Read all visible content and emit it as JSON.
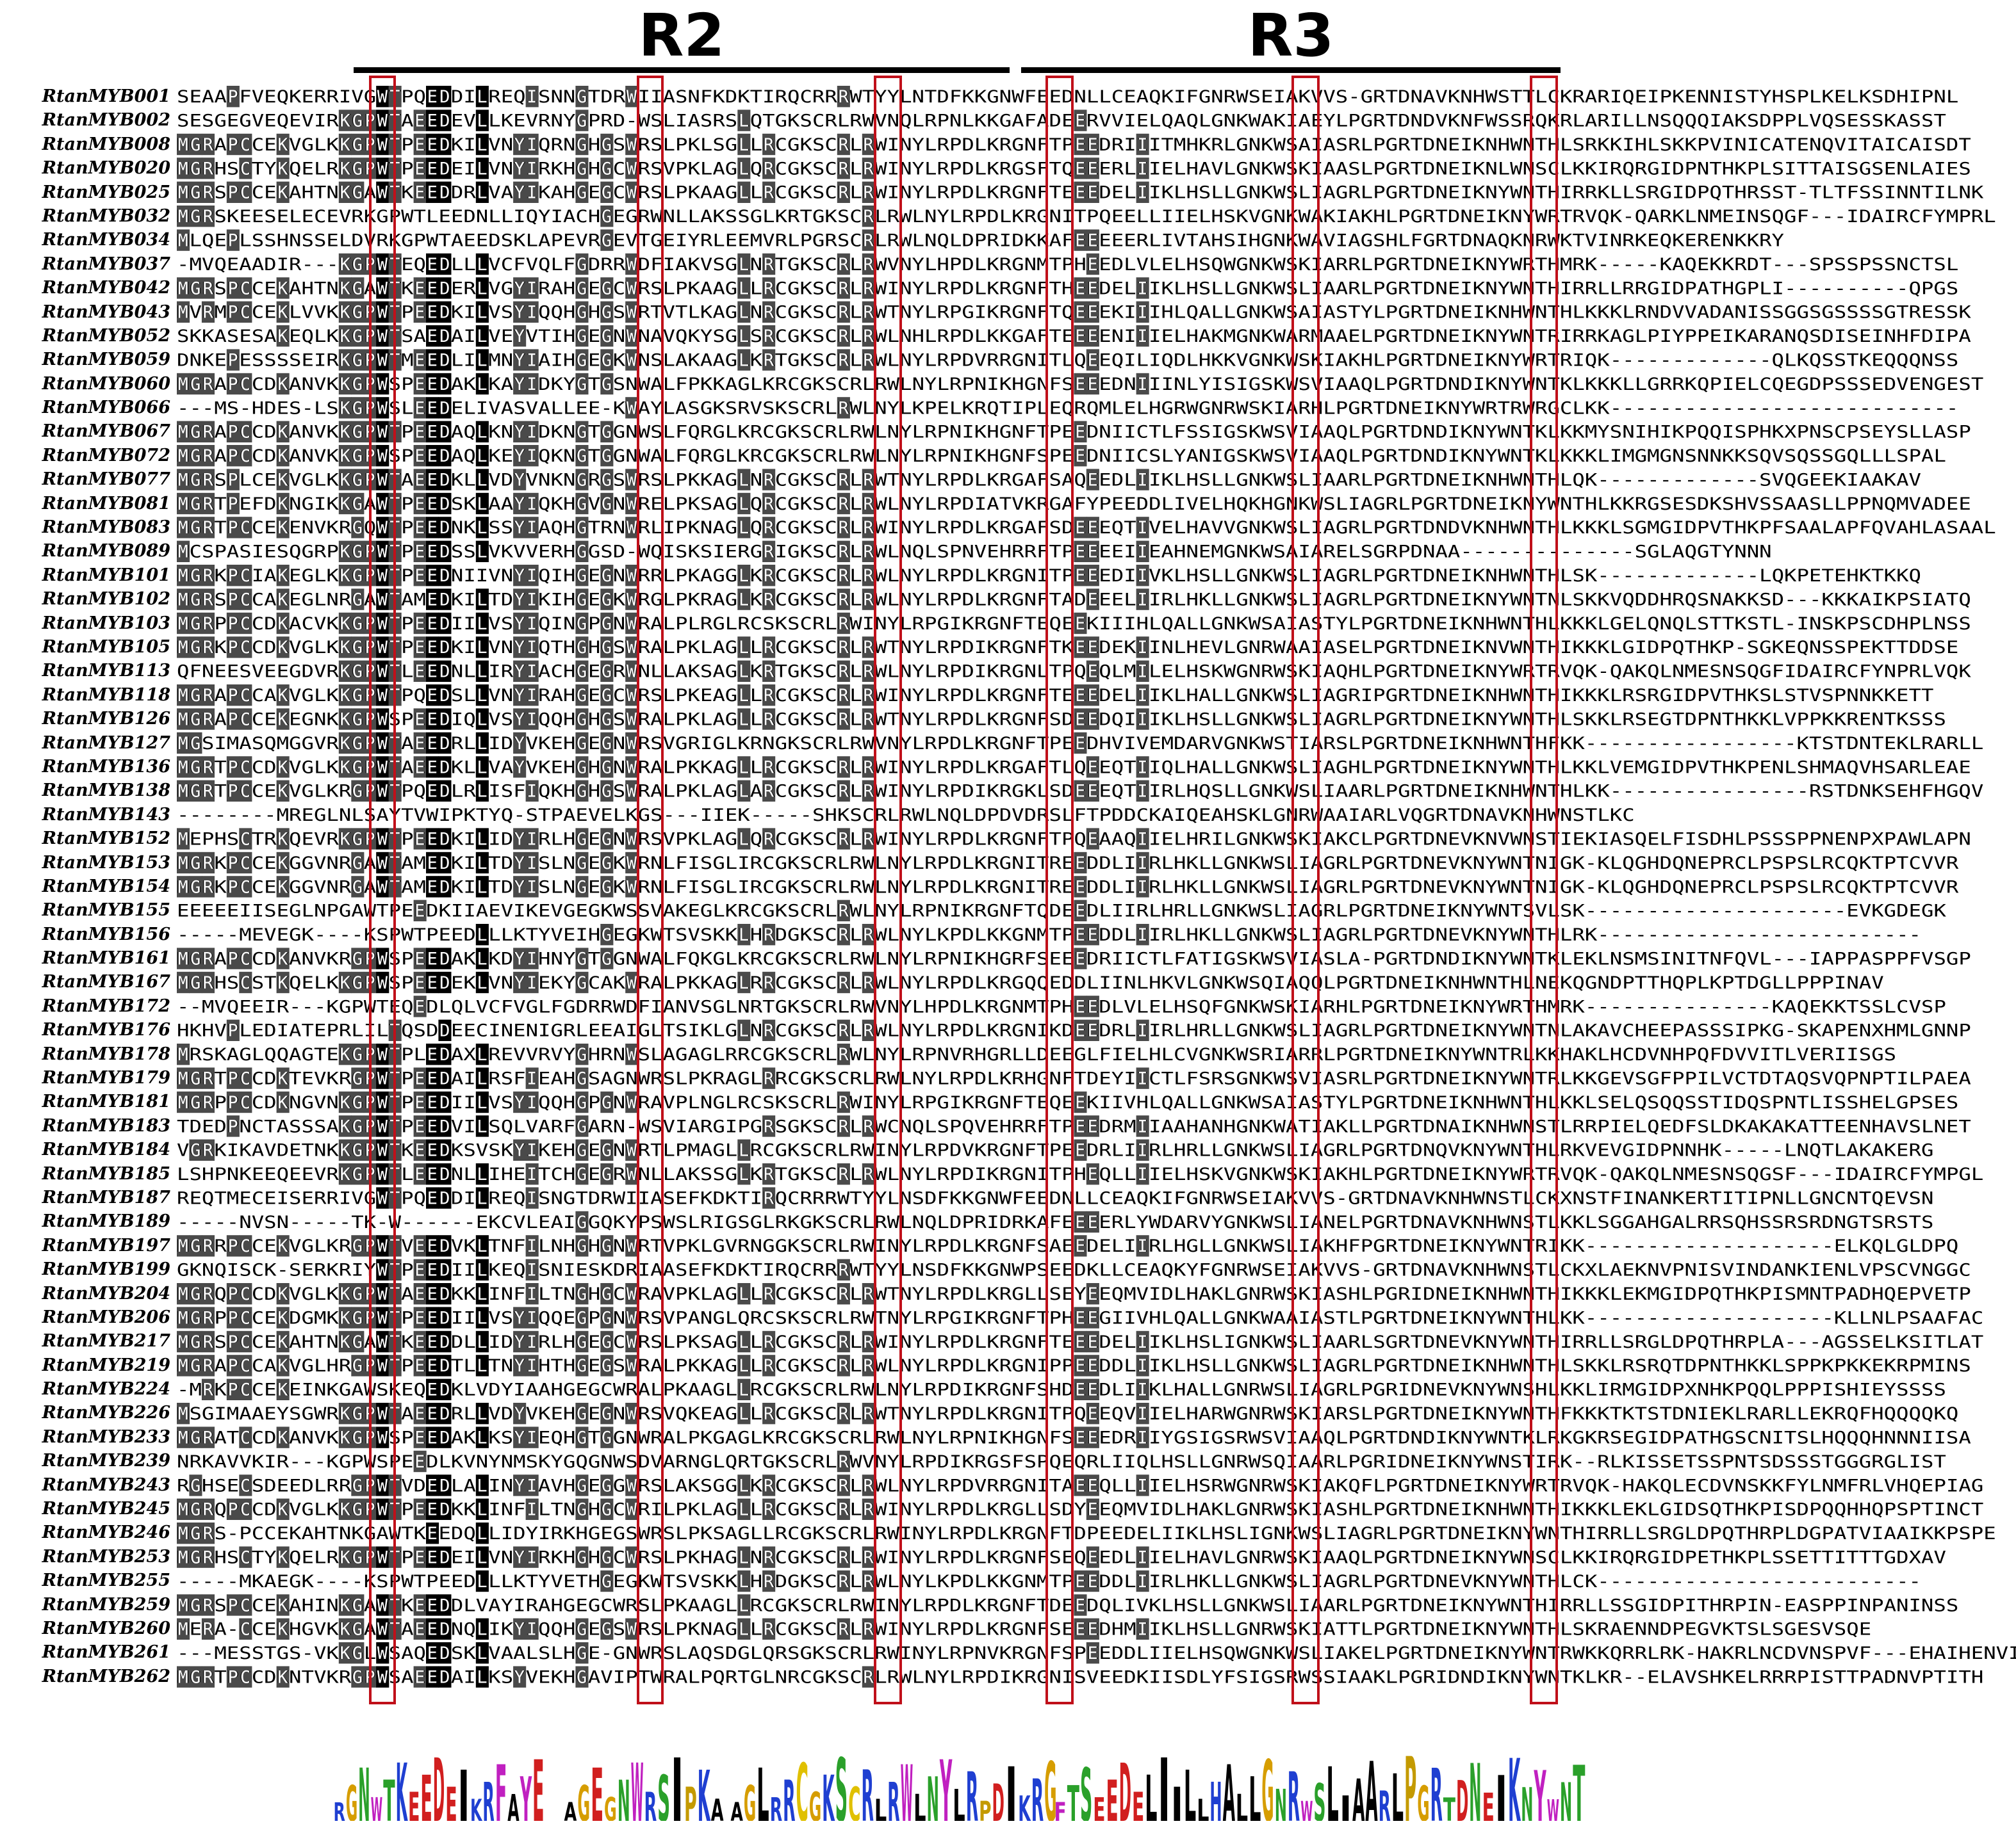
{
  "regions": [
    {
      "label": "R2"
    },
    {
      "label": "R3"
    }
  ],
  "sequences": [
    {
      "name": "RtanMYB001",
      "seq": "SEAAPFVEQKERRIVGWTPQEDDILREQISNNGTDRWIIASNFKDKTIRQCRRRWTYYLNTDFKKGNWFEEDNLLCEAQKIFGNRWSEIAKVVS-GRTDNAVKNHWSTTLCKRARIQEIPKENNISTYHSPLKELKSDHIPNL"
    },
    {
      "name": "RtanMYB002",
      "seq": "SESGEGVEQEVIRKGPWTAEEDEVLLKEVRNYGPRD-WSLIASRSLQTGKSCRLRWVNQLRPNLKKGAFADEERVVIELQAQLGNKWAKIAEYLPGRTDNDVKNFWSSRQKRLARILLNSQQQIAKSDPPLVQSESSKASST"
    },
    {
      "name": "RtanMYB008",
      "seq": "MGRAPCCEKVGLKKGPWTPEEDKILVNYIQRNGHGSWRSLPKLSGLLRCGKSCRLRWINYLRPDLKRGNFTPEEDRIIITMHKRLGNKWSAIASRLPGRTDNEIKNHWNTHLSRKKIHLSKKPVINICATENQVITAICAISDT"
    },
    {
      "name": "RtanMYB020",
      "seq": "MGRHSCTYKQELRKGPWTPEEDEILVNYIRKHGHGCWRSVPKLAGLQRCGKSCRLRWINYLRPDLKRGSFTQEEERLIIELHAVLGNKWSKIAASLPGRTDNEIKNLWNSCLKKIRQRGIDPNTHKPLSITTAISGSENLAIES"
    },
    {
      "name": "RtanMYB025",
      "seq": "MGRSPCCEKAHTNKGAWTKEEDDRLVAYIKAHGEGCWRSLPKAAGLLRCGKSCRLRWINYLRPDLKRGNFTEEEDELIIKLHSLLGNKWSLIAGRLPGRTDNEIKNYWNTHIRRKLLSRGIDPQTHRSST-TLTFSSINNTILNK"
    },
    {
      "name": "RtanMYB032",
      "seq": "MGRSKEESELECEVRKGPWTLEEDNLLIQYIACHGEGRWNLLAKSSGLKRTGKSCRLRWLNYLRPDLKRGNITPQEELLIIELHSKVGNKWAKIAKHLPGRTDNEIKNYWRTRVQK-QARKLNMEINSQGF---IDAIRCFYMPRL"
    },
    {
      "name": "RtanMYB034",
      "seq": "MLQEPLSSHNSSELDVRKGPWTAEEDSKLAPEVRGEVTGEIYRLEEMVRLPGRSCRLRWLNQLDPRIDKKAFEEEEERLIVTAHSIHGNKWAVIAGSHLFGRTDNAQKNRWKTVINRKEQKERENKKRY"
    },
    {
      "name": "RtanMYB037",
      "seq": "-MVQEAADIR---KGPWTEQEDLLLVCFVQLFGDRRWDFIAKVSGLNRTGKSCRLRWVNYLHPDLKRGNMTPHEEDLVLELHSQWGNKWSKIARRLPGRTDNEIKNYWRTHMRK-----KAQEKKRDT---SPSSPSSNCTSL"
    },
    {
      "name": "RtanMYB042",
      "seq": "MGRSPCCEKAHTNKGAWTKEEDERLVGYIRAHGEGCWRSLPKAAGLLRCGKSCRLRWINYLRPDLKRGNFTHEEDELIIKLHSLLGNKWSLIAARLPGRTDNEIKNYWNTHIRRLLRRGIDPATHGPLI----------QPGS"
    },
    {
      "name": "RtanMYB043",
      "seq": "MVRMPCCEKLVVKKGPWTPEEDKILVSYIQQHGHGSWRTVTLKAGLNRCGKSCRLRWTNYLRPGIKRGNFTQEEEKIIIHLQALLGNKWSAIASTYLPGRTDNEIKNHWNTHLKKKLRNDVVADANISSGGSGSSSSGTRESSK"
    },
    {
      "name": "RtanMYB052",
      "seq": "SKKASESAKEQLKKGPWTSAEDAILVEYVTIHGEGNWNAVQKYSGLSRCGKSCRLRWLNHLRPDLKKGAFTEEEENIIIELHAKMGNKWARMAAELPGRTDNEIKNYWNTRIRRKAGLPIYPPEIKARANQSDISEINHFDIPA"
    },
    {
      "name": "RtanMYB059",
      "seq": "DNKEPESSSSEIRKGPWTMEEDLILMNYIAIHGEGKWNSLAKAAGLKRTGKSCRLRWLNYLRPDVRRGNITLQEEQILIQDLHKKVGNKWSKIAKHLPGRTDNEIKNYWRTRIQK-------------QLKQSSTKEQQQNSS"
    },
    {
      "name": "RtanMYB060",
      "seq": "MGRAPCCDKANVKKGPWSPEEDAKLKAYIDKYGTGSNWALFPKKAGLKRCGKSCRLRWLNYLRPNIKHGNFSEEEDNIIINLYISIGSKWSVIAAQLPGRTDNDIKNYWNTKLKKKLLGRRKQPIELCQEGDPSSSEDVENGEST"
    },
    {
      "name": "RtanMYB066",
      "seq": "---MS-HDES-LSKGPWSLEEDELIVASVALLEE-KWAYLASGKSRVSKSCRLRWLNYLKPELKRQTIPLEQRQMLELHGRWGNRWSKIARHLPGRTDNEIKNYWRTRWRGCLKK----------------------------"
    },
    {
      "name": "RtanMYB067",
      "seq": "MGRAPCCDKANVKKGPWTPEEDAQLKNYIDKNGTGGNWSLFQRGLKRCGKSCRLRWLNYLRPNIKHGNFTPEEDNIICTLFSSIGSKWSVIAAQLPGRTDNDIKNYWNTKLKKMYSNIHIKPQQISPHKXPNSCPSEYSLLASP"
    },
    {
      "name": "RtanMYB072",
      "seq": "MGRAPCCDKANVKKGPWSPEEDAQLKEYIQKNGTGGNWALFQRGLKRCGKSCRLRWLNYLRPNIKHGNFSPEEDNIICSLYANIGSKWSVIAAQLPGRTDNDIKNYWNTKLKKKLIMGMGNSNNKKSQVSQSSGQLLLSPAL"
    },
    {
      "name": "RtanMYB077",
      "seq": "MGRSPLCEKVGLKKGPWTAEEDKLLVDYVNKNGRGSWRSLPKKAGLNRCGKSCRLRWTNYLRPDLKRGAFSAQEEDLIIKLHSLLGNKWSLIAARLPGRTDNEIKNHWNTHLQK-------------SVQGEEKIAAKAV"
    },
    {
      "name": "RtanMYB081",
      "seq": "MGRTPEFDKNGIKKGAWTPEEDSKLAAYIQKHGVGNWRELPKSAGLQRCGKSCRLRWLNYLRPDIATVKRGAFYPEEDDLIVELHQKHGNKWSLIAGRLPGRTDNEIKNYWNTHLKKRGSESDKSHVSSAASLLPPNQMVADEE"
    },
    {
      "name": "RtanMYB083",
      "seq": "MGRTPCCEKENVKRGQWTPEEDNKLSSYIAQHGTRNWRLIPKNAGLQRCGKSCRLRWINYLRPDLKRGAFSDEEEQTIVELHAVVGNKWSLIAGRLPGRTDNDVKNHWNTHLKKKLSGMGIDPVTHKPFSAALAPFQVAHLASAAL"
    },
    {
      "name": "RtanMYB089",
      "seq": "MCSPASIESQGRPKGPWTPEEDSSLVKVVERHGGSD-WQISKSIERGRIGKSCRLRWLNQLSPNVEHRRFTPEEEEIIEAHNEMGNKWSAIARELSGRPDNAA--------------SGLAQGTYNNN"
    },
    {
      "name": "RtanMYB101",
      "seq": "MGRKPCIAKEGLKKGPWTPEEDNIIVNYIQIHGEGNWRRLPKAGGLKRCGKSCRLRWLNYLRPDLKRGNITPEEEDIIVKLHSLLGNKWSLIAGRLPGRTDNEIKNHWNTHLSK-------------LQKPETEHKTKKQ"
    },
    {
      "name": "RtanMYB102",
      "seq": "MGRSPCCAKEGLNRGAWTAMEDKILTDYIKIHGEGKWRGLPKRAGLKRCGKSCRLRWLNYLRPDLKRGNFTADEEELIIRLHKLLGNKWSLIAGRLPGRTDNEIKNYWNTNLSKKVQDDHRQSNAKKSD---KKKAIKPSIATQ"
    },
    {
      "name": "RtanMYB103",
      "seq": "MGRPPCCDKACVKKGPWTPEEDIILVSYIQINGPGNWRALPLRGLRCSKSCRLRWINYLRPGIKRGNFTEQEEKIIIHLQALLGNKWSAIASTYLPGRTDNEIKNHWNTHLKKKLGELQNQLSTTKSTL-INSKPSCDHPLNSS"
    },
    {
      "name": "RtanMYB105",
      "seq": "MGRKPCCDKVGLKKGPWTPEEDKILVNYIQTHGHGSWRALPKLAGLLRCGKSCRLRWTNYLRPDIKRGNFTKEEDEKIINLHEVLGNRWAAIASELPGRTDNEIKNVWNTHIKKKLGIDPQTHKP-SGKEQNSSPEKTTDDSE"
    },
    {
      "name": "RtanMYB113",
      "seq": "QFNEESVEEGDVRKGPWTLEEDNLLIRYIACHGEGRWNLLAKSAGLKRTGKSCRLRWLNYLRPDIKRGNLTPQEQLMILELHSKWGNRWSKIAQHLPGRTDNEIKNYWRTRVQK-QAKQLNMESNSQGFIDAIRCFYNPRLVQK"
    },
    {
      "name": "RtanMYB118",
      "seq": "MGRAPCCAKVGLKKGPWTPQEDSLLVNYIRAHGEGCWRSLPKEAGLLRCGKSCRLRWINYLRPDLKRGNFTEEEDELIIKLHALLGNKWSLIAGRIPGRTDNEIKNHWNTHIKKKLRSRGIDPVTHKSLSTVSPNNKKETT"
    },
    {
      "name": "RtanMYB126",
      "seq": "MGRAPCCEKEGNKKGPWSPEEDIQLVSYIQQHGHGSWRALPKLAGLLRCGKSCRLRWTNYLRPDLKRGNFSDEEDQIIIKLHSLLGNKWSLIAGRLPGRTDNEIKNYWNTHLSKKLRSEGTDPNTHKKLVPPKKRENTKSSS"
    },
    {
      "name": "RtanMYB127",
      "seq": "MGSIMASQMGGVRKGPWTAEEDRLLIDYVKEHGEGNWRSVGRIGLKRNGKSCRLRWVNYLRPDLKRGNFTPEEDHVIVEMDARVGNKWSTIARSLPGRTDNEIKNHWNTHFKK-----------------KTSTDNTEKLRARLL"
    },
    {
      "name": "RtanMYB136",
      "seq": "MGRTPCCDKVGLKKGPWTAEEDKLLVAYVKEHGHGNWRALPKKAGLLRCGKSCRLRWINYLRPDLKRGAFTLQEEQTIIQLHALLGNKWSLIAGHLPGRTDNEIKNYWNTHLKKLVEMGIDPVTHKPENLSHMAQVHSARLEAE"
    },
    {
      "name": "RtanMYB138",
      "seq": "MGRTPCCEKVGLKRGPWTPQEDLRLISFIQKHGHGSWRALPKLAGLARCGKSCRLRWINYLRPDIKRGKLSDEEEQTIIRLHQSLLGNKWSLIAARLPGRTDNEIKNHWNTHLKK----------------RSTDNKSEHFHGQV"
    },
    {
      "name": "RtanMYB143",
      "seq": "--------MREGLNLSAYTVWIPKTYQ-STPAEVELKGS---IIEK-----SHKSCRLRWLNQLDPDVDRSLFTPDDCKAIQEAHSKLGNRWAAIARLVQGRTDNAVKNHWNSTLKC"
    },
    {
      "name": "RtanMYB152",
      "seq": "MEPHSCTRKQEVRKGPWTPEEDKILIDYIRLHGEGNWRSVPKLAGLQRCGKSCRLRWINYLRPDLKRGNFTPQEAAQIIELHRILGNKWSKIAKCLPGRTDNEVKNVWNSTIEKIASQELFISDHLPSSSPPNENPXPAWLAPN"
    },
    {
      "name": "RtanMYB153",
      "seq": "MGRKPCCEKGGVNRGAWTAMEDKILTDYISLNGEGKWRNLFISGLIRCGKSCRLRWLNYLRPDLKRGNITREEDDLIIRLHKLLGNKWSLIAGRLPGRTDNEVKNYWNTNIGK-KLQGHDQNEPRCLPSPSLRCQKTPTCVVR"
    },
    {
      "name": "RtanMYB154",
      "seq": "MGRKPCCEKGGVNRGAWTAMEDKILTDYISLNGEGKWRNLFISGLIRCGKSCRLRWLNYLRPDLKRGNITREEDDLIIRLHKLLGNKWSLIAGRLPGRTDNEVKNYWNTNIGK-KLQGHDQNEPRCLPSPSLRCQKTPTCVVR"
    },
    {
      "name": "RtanMYB155",
      "seq": "EEEEEIISEGLNPGAWTPEEDKIIAEVIKEVGEGKWSSVAKEGLKRCGKSCRLRWLNYLRPNIKRGNFTQDEEDLIIRLHRLLGNKWSLIAGRLPGRTDNEIKNYWNTSVLSK---------------------EVKGDEGK"
    },
    {
      "name": "RtanMYB156",
      "seq": "-----MEVEGK----KSPWTPEEDLLLKTYVEIHGEGKWTSVSKKLHRDGKSCRLRWLNYLKPDLKKGNMTPEEDDLIIRLHKLLGNKWSLIAGRLPGRTDNEVKNYWNTHLRK--------------------------"
    },
    {
      "name": "RtanMYB161",
      "seq": "MGRAPCCDKANVKRGPWSPEEDAKLKDYIHNYGTGGNWALFQKGLKRCGKSCRLRWLNYLRPNIKHGRFSEEEDRIICTLFATIGSKWSVIASLA-PGRTDNDIKNYWNTKLEKLNSMSINITNFQVL---IAPPASPPFVSGP"
    },
    {
      "name": "RtanMYB167",
      "seq": "MGRHSCSTKQELKKGPWSPEEDEKLVNYIEKYGCAKWRALPKKAGLRRCGKSCRLRWLNYLRPDLKRGQQEDDLIINLHKVLGNKWSQIAQQLPGRTDNEIKNHWNTHLNEKQGNDPTTHQPLKPTDGLLPPPINAV"
    },
    {
      "name": "RtanMYB172",
      "seq": "--MVQEEIR---KGPWTEQEDLQLVCFVGLFGDRRWDFIANVSGLNRTGKSCRLRWVNYLHPDLKRGNMTPHEEDLVLELHSQFGNKWSKIARHLPGRTDNEIKNYWRTHMRK---------------KAQEKKTSSLCVSP"
    },
    {
      "name": "RtanMYB176",
      "seq": "HKHVPLEDIATEPRLILTQSDDEECINENIGRLEEAIGLTSIKLGLNRCGKSCRLRWLNYLRPDLKRGNIKDEEDRLIIRLHRLLGNKWSLIAGRLPGRTDNEIKNYWNTNLAKAVCHEEPASSSIPKG-SKAPENXHMLGNNP"
    },
    {
      "name": "RtanMYB178",
      "seq": "MRSKAGLQQAGTEKGPWTPLEDAXLREVVRVYGHRNWSLAGAGLRRCGKSCRLRWLNYLRPNVRHGRLLDEEGLFIELHLCVGNKWSRIARRLPGRTDNEIKNYWNTRLKKHAKLHCDVNHPQFDVVITLVERIISGS"
    },
    {
      "name": "RtanMYB179",
      "seq": "MGRTPCCDKTEVKRGPWTPEEDAILRSFIEAHGSAGNWRSLPKRAGLRRCGKSCRLRWLNYLRPDLKRHGNFTDEYIICTLFSRSGNKWSVIASRLPGRTDNEIKNYWNTRLKKGEVSGFPPILVCTDTAQSVQPNPTILPAEA"
    },
    {
      "name": "RtanMYB181",
      "seq": "MGRPPCCDKNGVNKGPWTPEEDIILVSYIQQHGPGNWRAVPLNGLRCSKSCRLRWINYLRPGIKRGNFTEQEEKIIVHLQALLGNKWSAIASTYLPGRTDNEIKNHWNTHLKKLSELQSQQSSTIDQSPNTLISSHELGPSES"
    },
    {
      "name": "RtanMYB183",
      "seq": "TDEDPNCTASSSAKGPWTPEEDVILSQLVARFGARN-WSVIARGIPGRSGKSCRLRWCNQLSPQVEHRRFTPEEDRMIIAAHANHGNKWATIAKLLPGRTDNAIKNHWNSTLRRPIELQEDFSLDKAKAKATTEENHAVSLNET"
    },
    {
      "name": "RtanMYB184",
      "seq": "VGRKIKAVDETNKKGPWTKEEDKSVSKYIKEHGEGNWRTLPMAGLLRCGKSCRLRWINYLRPDVKRGNFTPEEDRLIIRLHRLLGNKWSLIAGRLPGRTDNQVKNYWNTHLRKVEVGIDPNNHK-----LNQTLAKAKERG"
    },
    {
      "name": "RtanMYB185",
      "seq": "LSHPNKEEQEEVRKGPWTLEEDNLLIHEITCHGEGRWNLLAKSSGLKRTGKSCRLRWLNYLRPDIKRGNITPHEQLLIIELHSKVGNKWSKIAKHLPGRTDNEIKNYWRTRVQK-QAKQLNMESNSQGSF---IDAIRCFYMPGL"
    },
    {
      "name": "RtanMYB187",
      "seq": "REQTMECEISERRIVGWTPQEDDILREQISNGTDRWIIASEFKDKTIRQCRRRWTYYLNSDFKKGNWFEEDNLLCEAQKIFGNRWSEIAKVVS-GRTDNAVKNHWNSTLCKXNSTFINANKERTITIPNLLGNCNTQEVSN"
    },
    {
      "name": "RtanMYB189",
      "seq": "-----NVSN-----TK-W------EKCVLEAIGGQKYPSWSLRIGSGLRKGKSCRLRWLNQLDPRIDRKAFEEEERLYWDARVYGNKWSLIANELPGRTDNAVKNHWNSTLKKLSGGAHGALRRSQHSSRSRDNGTSRSTS"
    },
    {
      "name": "RtanMYB197",
      "seq": "MGRRPCCEKVGLKRGPWTVEEDVKLTNFILNHGHGNWRTVPKLGVRNGGKSCRLRWINYLRPDLKRGNFSAEEDELIIRLHGLLGNKWSLIAKHFPGRTDNEIKNYWNTRIKK--------------------ELKQLGLDPQ"
    },
    {
      "name": "RtanMYB199",
      "seq": "GKNQISCK-SERKRIYWTPEEDIILKEQISNIESKDRIAASEFKDKTIRQCRRRWTYYLNSDFKKGNWPSEEDKLLCEAQKYFGNRWSEIAKVVS-GRTDNAVKNHWNSTLCKXLAEKNVPNISVINDANKIENLVPSCVNGGC"
    },
    {
      "name": "RtanMYB204",
      "seq": "MGRQPCCDKVGLKKGPWTAEEDKKLINFILTNGHGCWRAVPKLAGLLRCGKSCRLRWTNYLRPDLKRGLLSEYEEQMVIDLHAKLGNRWSKIASHLPGRIDNEIKNHWNTHIKKKLEKMGIDPQTHKPISMNTPADHQEPVETP"
    },
    {
      "name": "RtanMYB206",
      "seq": "MGRPPCCEKDGMKKGPWTPEEDIILVSYIQQEGPGNWRSVPANGLQRCSKSCRLRWTNYLRPGIKRGNFTPHEEGIIVHLQALLGNKWAAIASTLPGRTDNEIKNYWNTHLKK--------------------KLLNLPSAAFAC"
    },
    {
      "name": "RtanMYB217",
      "seq": "MGRSPCCEKAHTNKGAWTKEEDDLLIDYIRLHGEGCWRSLPKSAGLLRCGKSCRLRWINYLRPDLKRGNFTEEEDELIIKLHSLIGNKWSLIAARLSGRTDNEVKNYWNTHIRRLLSRGLDPQTHRPLA---AGSSELKSITLAT"
    },
    {
      "name": "RtanMYB219",
      "seq": "MGRAPCCAKVGLHRGPWTPEEDTLLTNYIHTHGEGSWRALPKKAGLLRCGKSCRLRWLNYLRPDLKRGNIPPEEDDLIIKLHSLLGNKWSLIAGRLPGRTDNEIKNHWNTHLSKKLRSRQTDPNTHKKLSPPKPKKEKRPMINS"
    },
    {
      "name": "RtanMYB224",
      "seq": "-MRKPCCEKEINKGAWSKEQEDKLVDYIAAHGEGCWRALPKAAGLLRCGKSCRLRWLNYLRPDIKRGNFSHDEEDLIIKLHALLGNRWSLIAGRLPGRIDNEVKNYWNSHLKKLIRMGIDPXNHKPQQLPPPISHIEYSSSS"
    },
    {
      "name": "RtanMYB226",
      "seq": "MSGIMAAEYSGWRKGPWTAEEDRLLVDYVKEHGEGNWRSVQKEAGLLRCGKSCRLRWTNYLRPDLKRGNITPQEEQVIIELHARWGNRWSKIARSLPGRTDNEIKNYWNTHFKKKTKTSTDNIEKLRARLLEKRQFHQQQQKQ"
    },
    {
      "name": "RtanMYB233",
      "seq": "MGRATCCDKANVKKGPWSPEEDAKLKSYIEQHGTGGNWRALPKGAGLKRCGKSCRLRWLNYLRPNIKHGNFSEEEDRIIYGSIGSRWSVIAAQLPGRTDNDIKNYWNTKLRKGKRSEGIDPATHGSCNITSLHQQQHNNNIISA"
    },
    {
      "name": "RtanMYB239",
      "seq": "NRKAVVKIR---KGPWSPEEDLKVNYNMSKYGQGNWSDVARNGLQRTGKSCRLRWVNYLRPDIKRGSFSPQEQRLIIQLHSLLGNRWSQIAARLPGRIDNEIKNYWNSTIRK--RLKISSETSSPNTSDSSSTGGGRGLIST"
    },
    {
      "name": "RtanMYB243",
      "seq": "RGHSECSDEEDLRRGPWTVDEDLALINYIAVHGEGGWRSLAKSGGLKRCGKSCRLRWLNYLRPDVRRGNITAEEQLLIIELHSRWGNRWSKIAKQFLPGRTDNEIKNYWRTRVQK-HAKQLECDVNSKKFYLNMFRLVHQEPIAG"
    },
    {
      "name": "RtanMYB245",
      "seq": "MGRQPCCDKVGLKKGPWTPEEDKKLINFILTNGHGCWRILPKLAGLLRCGKSCRLRWINYLRPDLKRGLLSDYEEQMVIDLHAKLGNRWSKIASHLPGRTDNEIKNHWNTHIKKKLEKLGIDSQTHKPISDPQQHHQPSPTINCT"
    },
    {
      "name": "RtanMYB246",
      "seq": "MGRS-PCCEKAHTNKGAWTKEEDQLLIDYIRKHGEGSWRSLPKSAGLLRCGKSCRLRWINYLRPDLKRGNFTDPEEDELIIKLHSLIGNKWSLIAGRLPGRTDNEIKNYWNTHIRRLLSRGLDPQTHRPLDGPATVIAAIKKPSPE"
    },
    {
      "name": "RtanMYB253",
      "seq": "MGRHSCTYKQELRKGPWTPEEDEILVNYIRKHGHGCWRSLPKHAGLNRCGKSCRLRWINYLRPDLKRGNFSEQEEDLIIELHAVLGNRWSKIAAQLPGRTDNEIKNYWNSCLKKIRQRGIDPETHKPLSSETTITTTGDXAV"
    },
    {
      "name": "RtanMYB255",
      "seq": "-----MKAEGK----KSPWTPEEDLLLKTYVETHGEGKWTSVSKKLHRDGKSCRLRWLNYLKPDLKKGNMTPEEDDLIIRLHKLLGNKWSLIAGRLPGRTDNEVKNYWNTHLCK--------------------------"
    },
    {
      "name": "RtanMYB259",
      "seq": "MGRSPCCEKAHINKGAWTKEEDDLVAYIRAHGEGCWRSLPKAAGLLRCGKSCRLRWINYLRPDLKRGNFTDEEDQLIVKLHSLLGNKWSLIAARLPGRTDNEIKNYWNTHIRRLLSSGIDPITHRPIN-EASPPINPANINSS"
    },
    {
      "name": "RtanMYB260",
      "seq": "MERA-CCEKHGVKKGAWTAEEDNQLIKYIQQHGEGSWRSLPKNAGLLRCGKSCRLRWINYLRPDLKRGNFSEEEDHMIIKLHSLLGNRWSKIATTLPGRTDNEIKNYWNTHLSKRAENNDPEGVKTSLSGESVSQE"
    },
    {
      "name": "RtanMYB261",
      "seq": "---MESSTGS-VKKGLWSAQEDSKLVAALSLHGE-GNWRSLAQSDGLQRSGKSCRLRWINYLRPNVKRGNFSPEEDDLIIELHSQWGNKWSLIAKELPGRTDNEIKNYWNTRWKKQRRLRK-HAKRLNCDVNSPVF---EHAIHENVIPAL"
    },
    {
      "name": "RtanMYB262",
      "seq": "MGRTPCCDKNTVKRGPWSAEEDAILKSYVEKHGAVIPTWRALPQRTGLNRCGKSCRLRWLNYLRPDIKRGNISVEEDKIISDLYFSIGSRWSSIAAKLPGRIDNDIKNYWNTKLKR--ELAVSHKELRRRPISTTPADNVPTITH"
    }
  ],
  "logo_blocks": [
    {
      "text": "RGNWTKEEDEIKRFAYE"
    },
    {
      "text": "AGEGNWRSIPKA"
    },
    {
      "text": "AGLRRCGKSCRLRWLNYLRPDIKRG"
    },
    {
      "text": "FTSEEDELIILLHALLGNRWSLIAARLPGRTDNEIKNYWNT"
    }
  ]
}
